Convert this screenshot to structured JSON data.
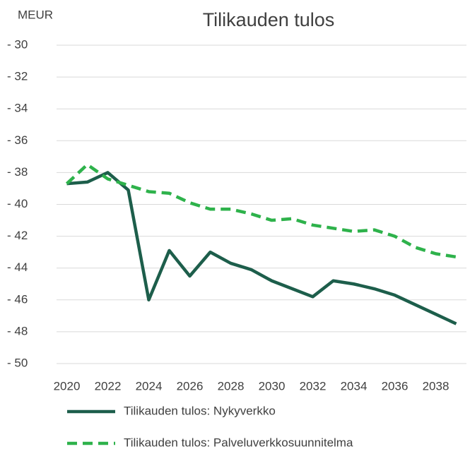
{
  "chart_data": {
    "type": "line",
    "title": "Tilikauden tulos",
    "y_label": "MEUR",
    "x": [
      2020,
      2021,
      2022,
      2023,
      2024,
      2025,
      2026,
      2027,
      2028,
      2029,
      2030,
      2031,
      2032,
      2033,
      2034,
      2035,
      2036,
      2037,
      2038,
      2039
    ],
    "series": [
      {
        "name": "Tilikauden tulos: Nykyverkko",
        "color": "#1d5e4b",
        "dash": false,
        "values": [
          -38.7,
          -38.6,
          -38.0,
          -39.1,
          -46.0,
          -42.9,
          -44.5,
          -43.0,
          -43.7,
          -44.1,
          -44.8,
          -45.3,
          -45.8,
          -44.8,
          -45.0,
          -45.3,
          -45.7,
          -46.3,
          -46.9,
          -47.5
        ]
      },
      {
        "name": "Tilikauden tulos: Palveluverkkosuunnitelma",
        "color": "#2eb24b",
        "dash": true,
        "values": [
          -38.7,
          -37.5,
          -38.4,
          -38.8,
          -39.2,
          -39.3,
          -39.9,
          -40.3,
          -40.3,
          -40.6,
          -41.0,
          -40.9,
          -41.3,
          -41.5,
          -41.7,
          -41.6,
          -42.0,
          -42.7,
          -43.1,
          -43.3
        ]
      }
    ],
    "xlim": [
      2019.5,
      2039.5
    ],
    "xticks": [
      2020,
      2022,
      2024,
      2026,
      2028,
      2030,
      2032,
      2034,
      2036,
      2038
    ],
    "ylim": [
      -50,
      -30
    ],
    "yticks": [
      {
        "value": -30,
        "label": "- 30"
      },
      {
        "value": -32,
        "label": "- 32"
      },
      {
        "value": -34,
        "label": "- 34"
      },
      {
        "value": -36,
        "label": "- 36"
      },
      {
        "value": -38,
        "label": "- 38"
      },
      {
        "value": -40,
        "label": "- 40"
      },
      {
        "value": -42,
        "label": "- 42"
      },
      {
        "value": -44,
        "label": "- 44"
      },
      {
        "value": -46,
        "label": "- 46"
      },
      {
        "value": -48,
        "label": "- 48"
      },
      {
        "value": -50,
        "label": "- 50"
      }
    ],
    "grid": true
  }
}
